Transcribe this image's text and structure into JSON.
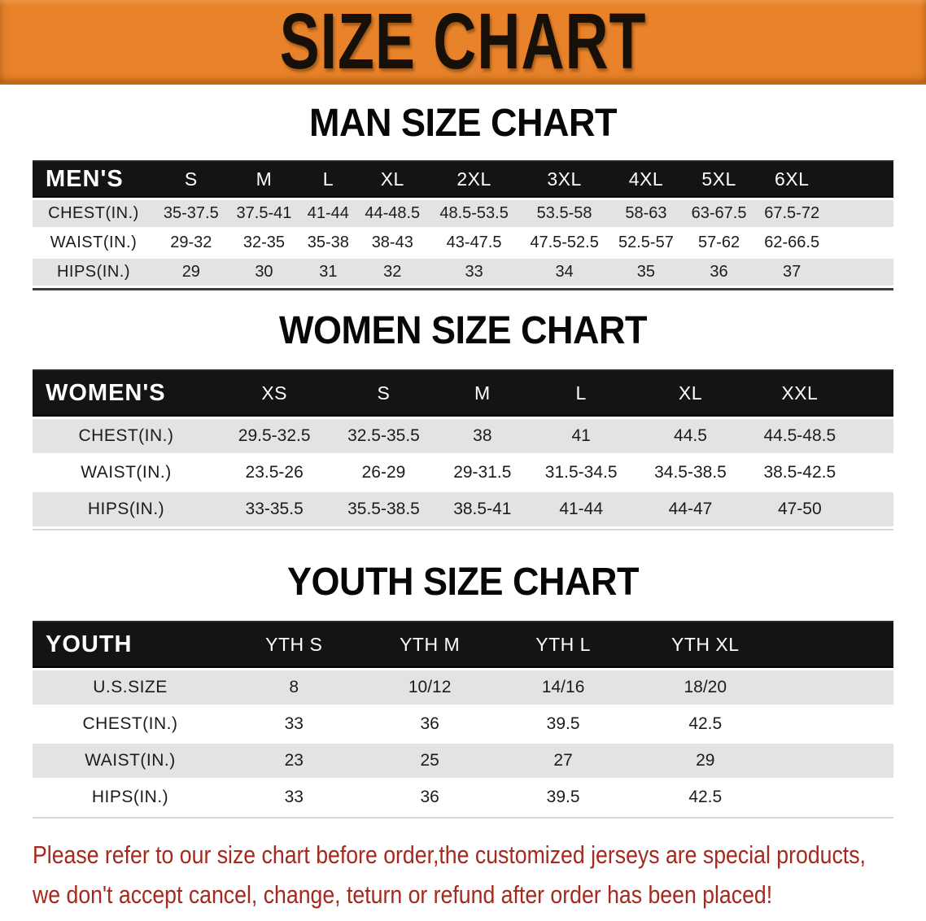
{
  "banner": {
    "title": "SIZE CHART"
  },
  "sections": [
    {
      "key": "men",
      "heading": "MAN SIZE CHART",
      "table_title": "MEN'S",
      "columns": [
        "S",
        "M",
        "L",
        "XL",
        "2XL",
        "3XL",
        "4XL",
        "5XL",
        "6XL"
      ],
      "rows": [
        {
          "label": "CHEST(IN.)",
          "values": [
            "35-37.5",
            "37.5-41",
            "41-44",
            "44-48.5",
            "48.5-53.5",
            "53.5-58",
            "58-63",
            "63-67.5",
            "67.5-72"
          ]
        },
        {
          "label": "WAIST(IN.)",
          "values": [
            "29-32",
            "32-35",
            "35-38",
            "38-43",
            "43-47.5",
            "47.5-52.5",
            "52.5-57",
            "57-62",
            "62-66.5"
          ]
        },
        {
          "label": "HIPS(IN.)",
          "values": [
            "29",
            "30",
            "31",
            "32",
            "33",
            "34",
            "35",
            "36",
            "37"
          ]
        }
      ]
    },
    {
      "key": "women",
      "heading": "WOMEN SIZE CHART",
      "table_title": "WOMEN'S",
      "columns": [
        "XS",
        "S",
        "M",
        "L",
        "XL",
        "XXL"
      ],
      "rows": [
        {
          "label": "CHEST(IN.)",
          "values": [
            "29.5-32.5",
            "32.5-35.5",
            "38",
            "41",
            "44.5",
            "44.5-48.5"
          ]
        },
        {
          "label": "WAIST(IN.)",
          "values": [
            "23.5-26",
            "26-29",
            "29-31.5",
            "31.5-34.5",
            "34.5-38.5",
            "38.5-42.5"
          ]
        },
        {
          "label": "HIPS(IN.)",
          "values": [
            "33-35.5",
            "35.5-38.5",
            "38.5-41",
            "41-44",
            "44-47",
            "47-50"
          ]
        }
      ]
    },
    {
      "key": "youth",
      "heading": "YOUTH SIZE CHART",
      "table_title": "YOUTH",
      "columns": [
        "YTH S",
        "YTH M",
        "YTH L",
        "YTH XL"
      ],
      "rows": [
        {
          "label": "U.S.SIZE",
          "values": [
            "8",
            "10/12",
            "14/16",
            "18/20"
          ]
        },
        {
          "label": "CHEST(IN.)",
          "values": [
            "33",
            "36",
            "39.5",
            "42.5"
          ]
        },
        {
          "label": "WAIST(IN.)",
          "values": [
            "23",
            "25",
            "27",
            "29"
          ]
        },
        {
          "label": "HIPS(IN.)",
          "values": [
            "33",
            "36",
            "39.5",
            "42.5"
          ]
        }
      ]
    }
  ],
  "disclaimer": {
    "lines": [
      "Please refer to our size chart before order,the customized jerseys are special products,",
      "we don't accept cancel, change, teturn or refund after order has been placed!"
    ]
  },
  "colors": {
    "banner_orange": "#E8832B",
    "banner_edge": "#C4690F",
    "header_black": "#141414",
    "row_gray": "#E3E3E3",
    "disclaimer_red": "#A5291E"
  }
}
